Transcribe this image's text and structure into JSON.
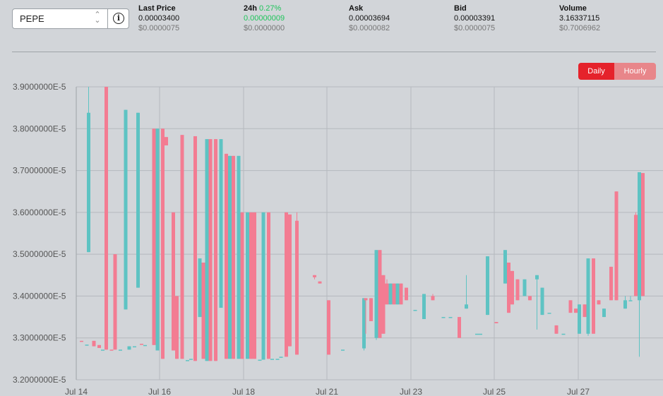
{
  "pair_selector": {
    "value": "PEPE"
  },
  "stats": [
    {
      "label": "Last Price",
      "value": "0.00003400",
      "usd": "$0.0000075"
    },
    {
      "label": "24h",
      "change": "0.27%",
      "value": "0.00000009",
      "usd": "$0.0000000"
    },
    {
      "label": "Ask",
      "value": "0.00003694",
      "usd": "$0.0000082"
    },
    {
      "label": "Bid",
      "value": "0.00003391",
      "usd": "$0.0000075"
    },
    {
      "label": "Volume",
      "value": "3.16337115",
      "usd": "$0.7006962"
    }
  ],
  "interval_toggle": {
    "daily": "Daily",
    "hourly": "Hourly",
    "active": "Daily"
  },
  "colors": {
    "up": "#5ec3c3",
    "down": "#f37c92",
    "accent": "#e5222b"
  },
  "chart_data": {
    "type": "candlestick",
    "y_tick_labels": [
      "3.9000000E-5",
      "3.8000000E-5",
      "3.7000000E-5",
      "3.6000000E-5",
      "3.5000000E-5",
      "3.4000000E-5",
      "3.3000000E-5",
      "3.2000000E-5"
    ],
    "x_tick_labels": [
      "Jul 14",
      "Jul 16",
      "Jul 18",
      "Jul 21",
      "Jul 23",
      "Jul 25",
      "Jul 27"
    ],
    "ylim": [
      3.2e-05,
      3.9e-05
    ],
    "grid": true,
    "candles": [
      {
        "t": 0.0,
        "o": 3.293,
        "c": 3.292,
        "h": 3.293,
        "l": 3.292
      },
      {
        "t": 0.15,
        "o": 3.284,
        "c": 3.284,
        "h": 3.284,
        "l": 3.284
      },
      {
        "t": 0.2,
        "o": 3.505,
        "c": 3.838,
        "h": 3.9,
        "l": 3.505
      },
      {
        "t": 0.35,
        "o": 3.293,
        "c": 3.28,
        "h": 3.293,
        "l": 3.28
      },
      {
        "t": 0.5,
        "o": 3.283,
        "c": 3.276,
        "h": 3.283,
        "l": 3.276
      },
      {
        "t": 0.6,
        "o": 3.272,
        "c": 3.272,
        "h": 3.272,
        "l": 3.272
      },
      {
        "t": 0.7,
        "o": 3.9,
        "c": 3.272,
        "h": 3.9,
        "l": 3.272
      },
      {
        "t": 0.85,
        "o": 3.272,
        "c": 3.27,
        "h": 3.272,
        "l": 3.27
      },
      {
        "t": 0.95,
        "o": 3.5,
        "c": 3.272,
        "h": 3.5,
        "l": 3.272
      },
      {
        "t": 1.1,
        "o": 3.272,
        "c": 3.272,
        "h": 3.272,
        "l": 3.272
      },
      {
        "t": 1.25,
        "o": 3.368,
        "c": 3.845,
        "h": 3.845,
        "l": 3.368
      },
      {
        "t": 1.35,
        "o": 3.272,
        "c": 3.28,
        "h": 3.28,
        "l": 3.272
      },
      {
        "t": 1.5,
        "o": 3.28,
        "c": 3.28,
        "h": 3.28,
        "l": 3.28
      },
      {
        "t": 1.6,
        "o": 3.42,
        "c": 3.838,
        "h": 3.838,
        "l": 3.42
      },
      {
        "t": 1.7,
        "o": 3.286,
        "c": 3.284,
        "h": 3.286,
        "l": 3.284
      },
      {
        "t": 1.8,
        "o": 3.283,
        "c": 3.283,
        "h": 3.283,
        "l": 3.283
      },
      {
        "t": 2.05,
        "o": 3.8,
        "c": 3.283,
        "h": 3.8,
        "l": 3.283
      },
      {
        "t": 2.15,
        "o": 3.27,
        "c": 3.8,
        "h": 3.8,
        "l": 3.27
      },
      {
        "t": 2.3,
        "o": 3.8,
        "c": 3.25,
        "h": 3.8,
        "l": 3.25
      },
      {
        "t": 2.4,
        "o": 3.78,
        "c": 3.76,
        "h": 3.78,
        "l": 3.76
      },
      {
        "t": 2.6,
        "o": 3.6,
        "c": 3.27,
        "h": 3.6,
        "l": 3.27
      },
      {
        "t": 2.7,
        "o": 3.4,
        "c": 3.25,
        "h": 3.4,
        "l": 3.25
      },
      {
        "t": 2.85,
        "o": 3.785,
        "c": 3.25,
        "h": 3.785,
        "l": 3.25
      },
      {
        "t": 3.0,
        "o": 3.247,
        "c": 3.247,
        "h": 3.247,
        "l": 3.247
      },
      {
        "t": 3.1,
        "o": 3.25,
        "c": 3.25,
        "h": 3.25,
        "l": 3.25
      },
      {
        "t": 3.22,
        "o": 3.782,
        "c": 3.245,
        "h": 3.782,
        "l": 3.245
      },
      {
        "t": 3.35,
        "o": 3.35,
        "c": 3.49,
        "h": 3.49,
        "l": 3.35
      },
      {
        "t": 3.45,
        "o": 3.48,
        "c": 3.25,
        "h": 3.48,
        "l": 3.25
      },
      {
        "t": 3.55,
        "o": 3.245,
        "c": 3.775,
        "h": 3.775,
        "l": 3.245
      },
      {
        "t": 3.65,
        "o": 3.775,
        "c": 3.245,
        "h": 3.775,
        "l": 3.245
      },
      {
        "t": 3.8,
        "o": 3.775,
        "c": 3.245,
        "h": 3.775,
        "l": 3.245
      },
      {
        "t": 3.95,
        "o": 3.372,
        "c": 3.775,
        "h": 3.775,
        "l": 3.372
      },
      {
        "t": 4.1,
        "o": 3.74,
        "c": 3.25,
        "h": 3.74,
        "l": 3.25
      },
      {
        "t": 4.2,
        "o": 3.25,
        "c": 3.735,
        "h": 3.735,
        "l": 3.25
      },
      {
        "t": 4.3,
        "o": 3.735,
        "c": 3.25,
        "h": 3.735,
        "l": 3.25
      },
      {
        "t": 4.45,
        "o": 3.25,
        "c": 3.735,
        "h": 3.735,
        "l": 3.25
      },
      {
        "t": 4.55,
        "o": 3.6,
        "c": 3.25,
        "h": 3.6,
        "l": 3.25
      },
      {
        "t": 4.7,
        "o": 3.25,
        "c": 3.6,
        "h": 3.6,
        "l": 3.25
      },
      {
        "t": 4.8,
        "o": 3.6,
        "c": 3.25,
        "h": 3.6,
        "l": 3.25
      },
      {
        "t": 4.9,
        "o": 3.6,
        "c": 3.25,
        "h": 3.6,
        "l": 3.25
      },
      {
        "t": 5.05,
        "o": 3.248,
        "c": 3.248,
        "h": 3.248,
        "l": 3.248
      },
      {
        "t": 5.15,
        "o": 3.248,
        "c": 3.6,
        "h": 3.6,
        "l": 3.248
      },
      {
        "t": 5.3,
        "o": 3.6,
        "c": 3.25,
        "h": 3.6,
        "l": 3.25
      },
      {
        "t": 5.4,
        "o": 3.25,
        "c": 3.25,
        "h": 3.25,
        "l": 3.25
      },
      {
        "t": 5.55,
        "o": 3.25,
        "c": 3.25,
        "h": 3.25,
        "l": 3.25
      },
      {
        "t": 5.65,
        "o": 3.255,
        "c": 3.255,
        "h": 3.255,
        "l": 3.255
      },
      {
        "t": 5.8,
        "o": 3.6,
        "c": 3.255,
        "h": 3.6,
        "l": 3.255
      },
      {
        "t": 5.9,
        "o": 3.595,
        "c": 3.28,
        "h": 3.595,
        "l": 3.28
      },
      {
        "t": 6.1,
        "o": 3.58,
        "c": 3.26,
        "h": 3.6,
        "l": 3.26
      },
      {
        "t": 6.6,
        "o": 3.45,
        "c": 3.445,
        "h": 3.45,
        "l": 3.44
      },
      {
        "t": 6.75,
        "o": 3.435,
        "c": 3.43,
        "h": 3.435,
        "l": 3.43
      },
      {
        "t": 7.0,
        "o": 3.39,
        "c": 3.26,
        "h": 3.39,
        "l": 3.26
      },
      {
        "t": 7.4,
        "o": 3.272,
        "c": 3.272,
        "h": 3.272,
        "l": 3.272
      },
      {
        "t": 8.0,
        "o": 3.275,
        "c": 3.395,
        "h": 3.395,
        "l": 3.27
      },
      {
        "t": 8.05,
        "o": 3.395,
        "c": 3.39,
        "h": 3.395,
        "l": 3.31
      },
      {
        "t": 8.2,
        "o": 3.395,
        "c": 3.34,
        "h": 3.395,
        "l": 3.34
      },
      {
        "t": 8.35,
        "o": 3.3,
        "c": 3.51,
        "h": 3.51,
        "l": 3.295
      },
      {
        "t": 8.45,
        "o": 3.51,
        "c": 3.3,
        "h": 3.51,
        "l": 3.3
      },
      {
        "t": 8.55,
        "o": 3.45,
        "c": 3.31,
        "h": 3.45,
        "l": 3.31
      },
      {
        "t": 8.65,
        "o": 3.43,
        "c": 3.38,
        "h": 3.44,
        "l": 3.38
      },
      {
        "t": 8.75,
        "o": 3.38,
        "c": 3.43,
        "h": 3.43,
        "l": 3.38
      },
      {
        "t": 8.85,
        "o": 3.43,
        "c": 3.38,
        "h": 3.43,
        "l": 3.38
      },
      {
        "t": 8.95,
        "o": 3.38,
        "c": 3.43,
        "h": 3.43,
        "l": 3.38
      },
      {
        "t": 9.05,
        "o": 3.43,
        "c": 3.38,
        "h": 3.43,
        "l": 3.38
      },
      {
        "t": 9.2,
        "o": 3.42,
        "c": 3.39,
        "h": 3.42,
        "l": 3.39
      },
      {
        "t": 9.45,
        "o": 3.367,
        "c": 3.367,
        "h": 3.367,
        "l": 3.367
      },
      {
        "t": 9.7,
        "o": 3.345,
        "c": 3.405,
        "h": 3.405,
        "l": 3.345
      },
      {
        "t": 9.95,
        "o": 3.4,
        "c": 3.39,
        "h": 3.405,
        "l": 3.39
      },
      {
        "t": 10.25,
        "o": 3.35,
        "c": 3.35,
        "h": 3.35,
        "l": 3.35
      },
      {
        "t": 10.45,
        "o": 3.35,
        "c": 3.35,
        "h": 3.35,
        "l": 3.35
      },
      {
        "t": 10.7,
        "o": 3.35,
        "c": 3.3,
        "h": 3.35,
        "l": 3.3
      },
      {
        "t": 10.9,
        "o": 3.37,
        "c": 3.38,
        "h": 3.45,
        "l": 3.37
      },
      {
        "t": 11.2,
        "o": 3.31,
        "c": 3.31,
        "h": 3.31,
        "l": 3.31
      },
      {
        "t": 11.3,
        "o": 3.31,
        "c": 3.31,
        "h": 3.31,
        "l": 3.31
      },
      {
        "t": 11.5,
        "o": 3.355,
        "c": 3.495,
        "h": 3.495,
        "l": 3.355
      },
      {
        "t": 11.75,
        "o": 3.338,
        "c": 3.335,
        "h": 3.338,
        "l": 3.335
      },
      {
        "t": 12.0,
        "o": 3.43,
        "c": 3.51,
        "h": 3.51,
        "l": 3.43
      },
      {
        "t": 12.1,
        "o": 3.48,
        "c": 3.36,
        "h": 3.48,
        "l": 3.36
      },
      {
        "t": 12.2,
        "o": 3.46,
        "c": 3.38,
        "h": 3.46,
        "l": 3.38
      },
      {
        "t": 12.35,
        "o": 3.44,
        "c": 3.39,
        "h": 3.44,
        "l": 3.39
      },
      {
        "t": 12.55,
        "o": 3.4,
        "c": 3.44,
        "h": 3.44,
        "l": 3.4
      },
      {
        "t": 12.7,
        "o": 3.4,
        "c": 3.39,
        "h": 3.4,
        "l": 3.39
      },
      {
        "t": 12.9,
        "o": 3.44,
        "c": 3.45,
        "h": 3.45,
        "l": 3.32
      },
      {
        "t": 13.05,
        "o": 3.355,
        "c": 3.42,
        "h": 3.42,
        "l": 3.355
      },
      {
        "t": 13.25,
        "o": 3.36,
        "c": 3.36,
        "h": 3.36,
        "l": 3.36
      },
      {
        "t": 13.45,
        "o": 3.33,
        "c": 3.31,
        "h": 3.33,
        "l": 3.31
      },
      {
        "t": 13.65,
        "o": 3.31,
        "c": 3.31,
        "h": 3.31,
        "l": 3.31
      },
      {
        "t": 13.85,
        "o": 3.39,
        "c": 3.36,
        "h": 3.39,
        "l": 3.36
      },
      {
        "t": 14.0,
        "o": 3.37,
        "c": 3.36,
        "h": 3.37,
        "l": 3.36
      },
      {
        "t": 14.1,
        "o": 3.31,
        "c": 3.38,
        "h": 3.38,
        "l": 3.31
      },
      {
        "t": 14.25,
        "o": 3.38,
        "c": 3.35,
        "h": 3.38,
        "l": 3.35
      },
      {
        "t": 14.35,
        "o": 3.31,
        "c": 3.49,
        "h": 3.49,
        "l": 3.305
      },
      {
        "t": 14.5,
        "o": 3.49,
        "c": 3.31,
        "h": 3.49,
        "l": 3.31
      },
      {
        "t": 14.65,
        "o": 3.39,
        "c": 3.38,
        "h": 3.39,
        "l": 3.38
      },
      {
        "t": 14.8,
        "o": 3.35,
        "c": 3.37,
        "h": 3.37,
        "l": 3.35
      },
      {
        "t": 15.0,
        "o": 3.47,
        "c": 3.39,
        "h": 3.47,
        "l": 3.39
      },
      {
        "t": 15.15,
        "o": 3.65,
        "c": 3.39,
        "h": 3.65,
        "l": 3.39
      },
      {
        "t": 15.4,
        "o": 3.37,
        "c": 3.39,
        "h": 3.4,
        "l": 3.37
      },
      {
        "t": 15.55,
        "o": 3.39,
        "c": 3.39,
        "h": 3.4,
        "l": 3.39
      },
      {
        "t": 15.7,
        "o": 3.594,
        "c": 3.4,
        "h": 3.6,
        "l": 3.4
      },
      {
        "t": 15.8,
        "o": 3.39,
        "c": 3.696,
        "h": 3.696,
        "l": 3.255
      },
      {
        "t": 15.9,
        "o": 3.694,
        "c": 3.4,
        "h": 3.694,
        "l": 3.4
      }
    ]
  }
}
